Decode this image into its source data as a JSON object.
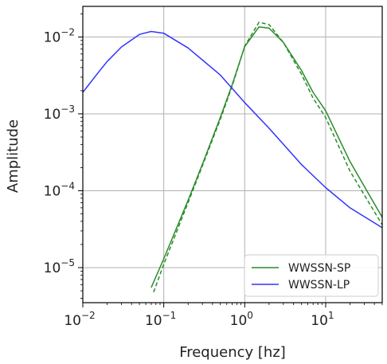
{
  "chart_data": {
    "type": "line",
    "xlabel": "Frequency [hz]",
    "ylabel": "Amplitude",
    "xscale": "log",
    "yscale": "log",
    "xlim": [
      0.01,
      50
    ],
    "ylim": [
      3.5e-06,
      0.025
    ],
    "grid": true,
    "legend_position": "lower-right",
    "x_ticks": [
      {
        "value": 0.01,
        "base": "10",
        "exp": "−2"
      },
      {
        "value": 0.1,
        "base": "10",
        "exp": "−1"
      },
      {
        "value": 1,
        "base": "10",
        "exp": "0"
      },
      {
        "value": 10,
        "base": "10",
        "exp": "1"
      }
    ],
    "y_ticks": [
      {
        "value": 1e-05,
        "base": "10",
        "exp": "−5"
      },
      {
        "value": 0.0001,
        "base": "10",
        "exp": "−4"
      },
      {
        "value": 0.001,
        "base": "10",
        "exp": "−3"
      },
      {
        "value": 0.01,
        "base": "10",
        "exp": "−2"
      }
    ],
    "series": [
      {
        "name": "WWSSN-SP",
        "color": "#2a8c2a",
        "dash": "solid",
        "in_legend": true,
        "points": [
          [
            0.07,
            5.5e-06
          ],
          [
            0.1,
            1.3e-05
          ],
          [
            0.2,
            7.5e-05
          ],
          [
            0.3,
            0.00022
          ],
          [
            0.5,
            0.0009
          ],
          [
            0.7,
            0.0024
          ],
          [
            1.0,
            0.0075
          ],
          [
            1.5,
            0.0135
          ],
          [
            2.0,
            0.013
          ],
          [
            3.0,
            0.0085
          ],
          [
            5.0,
            0.0037
          ],
          [
            7.0,
            0.0019
          ],
          [
            10.0,
            0.0011
          ],
          [
            20.0,
            0.00024
          ],
          [
            50.0,
            4.5e-05
          ]
        ]
      },
      {
        "name": "WWSSN-SP (dashed)",
        "color": "#2a8c2a",
        "dash": "dashed",
        "in_legend": false,
        "points": [
          [
            0.075,
            4.8e-06
          ],
          [
            0.1,
            1.1e-05
          ],
          [
            0.2,
            7e-05
          ],
          [
            0.3,
            0.00021
          ],
          [
            0.5,
            0.00085
          ],
          [
            0.7,
            0.0023
          ],
          [
            1.0,
            0.0076
          ],
          [
            1.5,
            0.0155
          ],
          [
            2.0,
            0.0145
          ],
          [
            3.0,
            0.0085
          ],
          [
            5.0,
            0.0033
          ],
          [
            7.0,
            0.0016
          ],
          [
            10.0,
            0.0009
          ],
          [
            20.0,
            0.00018
          ],
          [
            50.0,
            3.6e-05
          ]
        ]
      },
      {
        "name": "WWSSN-LP",
        "color": "#3333ff",
        "dash": "solid",
        "in_legend": true,
        "points": [
          [
            0.01,
            0.0019
          ],
          [
            0.015,
            0.0033
          ],
          [
            0.02,
            0.0048
          ],
          [
            0.03,
            0.0074
          ],
          [
            0.05,
            0.0108
          ],
          [
            0.07,
            0.0118
          ],
          [
            0.1,
            0.0112
          ],
          [
            0.2,
            0.0072
          ],
          [
            0.5,
            0.0032
          ],
          [
            1.0,
            0.0014
          ],
          [
            2.0,
            0.00065
          ],
          [
            5.0,
            0.00022
          ],
          [
            10.0,
            0.00011
          ],
          [
            20.0,
            6e-05
          ],
          [
            50.0,
            3.3e-05
          ]
        ]
      }
    ]
  }
}
